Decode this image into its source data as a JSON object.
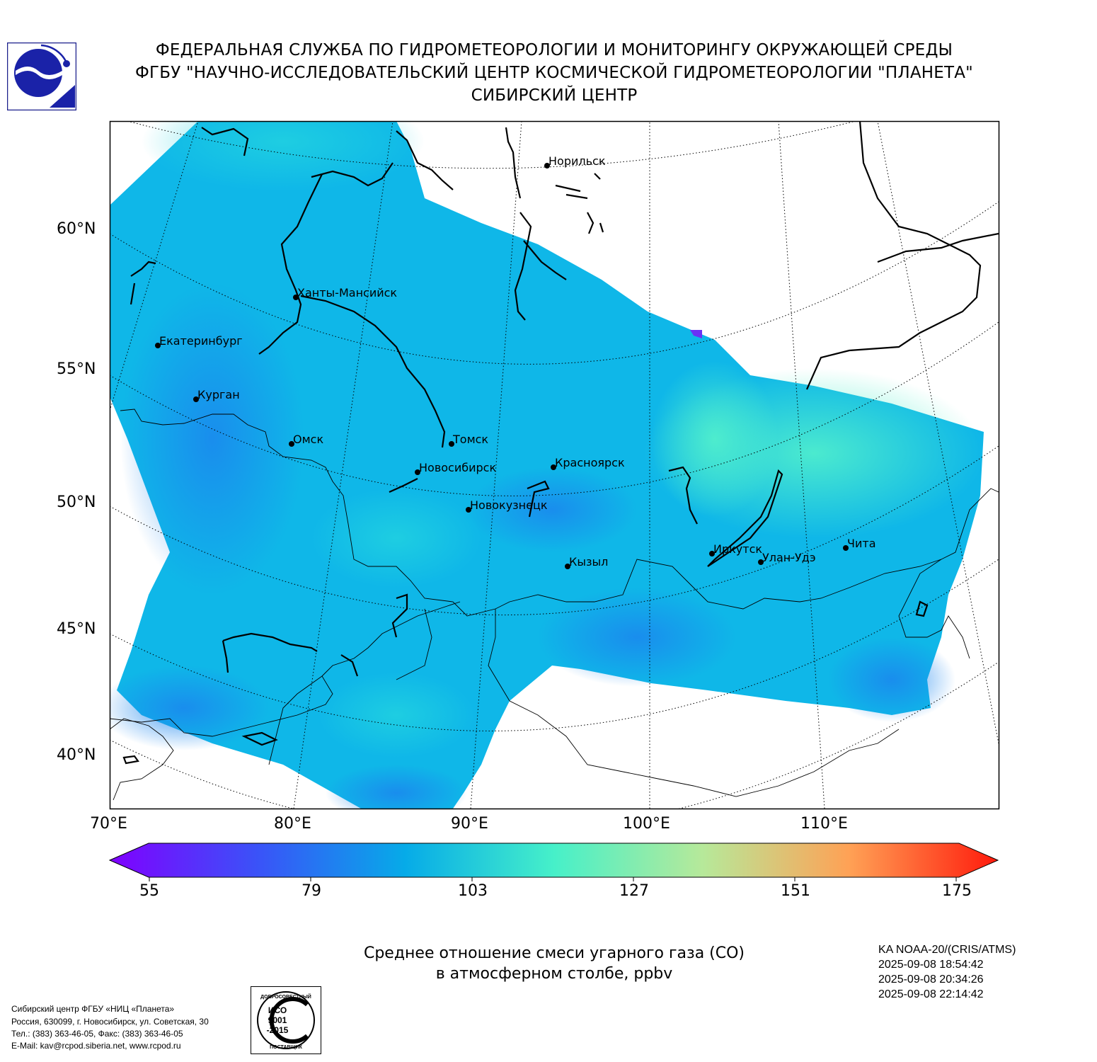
{
  "header": {
    "line1": "ФЕДЕРАЛЬНАЯ СЛУЖБА ПО ГИДРОМЕТЕОРОЛОГИИ И МОНИТОРИНГУ ОКРУЖАЮЩЕЙ СРЕДЫ",
    "line2": "ФГБУ \"НАУЧНО-ИССЛЕДОВАТЕЛЬСКИЙ ЦЕНТР КОСМИЧЕСКОЙ ГИДРОМЕТЕОРОЛОГИИ \"ПЛАНЕТА\"",
    "line3": "СИБИРСКИЙ ЦЕНТР"
  },
  "map": {
    "lat_labels": [
      "60°N",
      "55°N",
      "50°N",
      "45°N",
      "40°N"
    ],
    "lon_labels": [
      "70°E",
      "80°E",
      "90°E",
      "100°E",
      "110°E"
    ],
    "cities": [
      {
        "name": "Норильск"
      },
      {
        "name": "Ханты-Мансийск"
      },
      {
        "name": "Екатеринбург"
      },
      {
        "name": "Курган"
      },
      {
        "name": "Омск"
      },
      {
        "name": "Томск"
      },
      {
        "name": "Новосибирск"
      },
      {
        "name": "Красноярск"
      },
      {
        "name": "Новокузнецк"
      },
      {
        "name": "Кызыл"
      },
      {
        "name": "Иркутск"
      },
      {
        "name": "Улан-Удэ"
      },
      {
        "name": "Чита"
      }
    ]
  },
  "colorbar": {
    "min": 55,
    "max": 175,
    "ticks": [
      "55",
      "79",
      "103",
      "127",
      "151",
      "175"
    ],
    "colors": [
      "#8000ff",
      "#3a53f8",
      "#06abe8",
      "#46f0c9",
      "#b6e99a",
      "#ffa155",
      "#ff1a0c"
    ]
  },
  "caption": {
    "line1": "Среднее отношение смеси угарного газа (CO)",
    "line2": "в атмосферном столбе, ppbv"
  },
  "satellite": {
    "name": "KA NOAA-20/(CRIS/ATMS)",
    "times": [
      "2025-09-08 18:54:42",
      "2025-09-08 20:34:26",
      "2025-09-08 22:14:42"
    ]
  },
  "footer": {
    "line1": "Сибирский центр ФГБУ «НИЦ «Планета»",
    "line2": "Россия, 630099, г. Новосибирск, ул. Советская, 30",
    "line3": "Тел.: (383) 363-46-05, Факс: (383) 363-46-05",
    "line4": "E-Mail: kav@rcpod.siberia.net, www.rcpod.ru"
  },
  "iso_badge": {
    "top": "ДОБРОСОВЕСТНЫЙ",
    "mid1": "ИСО",
    "mid2": "9001",
    "mid3": "-2015",
    "bottom": "ПОСТАВЩИК"
  }
}
